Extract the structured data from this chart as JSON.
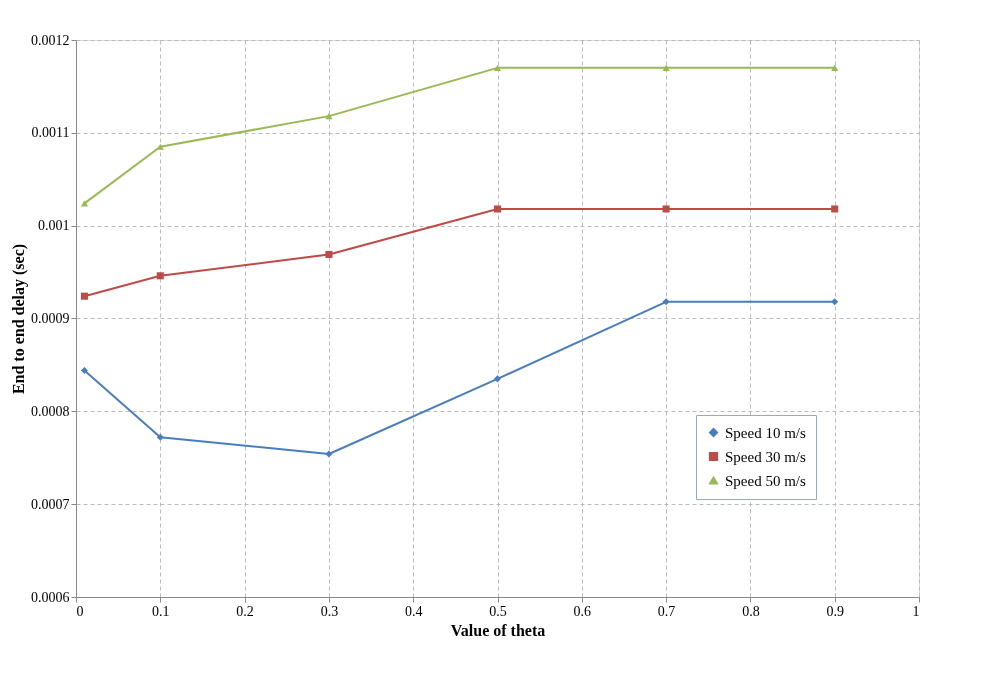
{
  "chart_data": {
    "type": "line",
    "xlabel": "Value of theta",
    "ylabel": "End to end delay (sec)",
    "x": [
      0.01,
      0.1,
      0.3,
      0.5,
      0.7,
      0.9
    ],
    "series": [
      {
        "name": "Speed 10 m/s",
        "color": "#4a7ebb",
        "marker": "diamond",
        "values": [
          0.000844,
          0.000772,
          0.000754,
          0.000835,
          0.000918,
          0.000918
        ]
      },
      {
        "name": "Speed 30 m/s",
        "color": "#be4b48",
        "marker": "square",
        "values": [
          0.000924,
          0.000946,
          0.000969,
          0.001018,
          0.001018,
          0.001018
        ]
      },
      {
        "name": "Speed 50 m/s",
        "color": "#98b954",
        "marker": "triangle",
        "values": [
          0.001024,
          0.001085,
          0.001118,
          0.00117,
          0.00117,
          0.00117
        ]
      }
    ],
    "xlim": [
      0,
      1
    ],
    "xticks": [
      0,
      0.1,
      0.2,
      0.3,
      0.4,
      0.5,
      0.6,
      0.7,
      0.8,
      0.9,
      1
    ],
    "ylim": [
      0.0006,
      0.0012
    ],
    "yticks": [
      0.0006,
      0.0007,
      0.0008,
      0.0009,
      0.001,
      0.0011,
      0.0012
    ],
    "grid": true,
    "legend": "right",
    "line_style": "solid"
  }
}
